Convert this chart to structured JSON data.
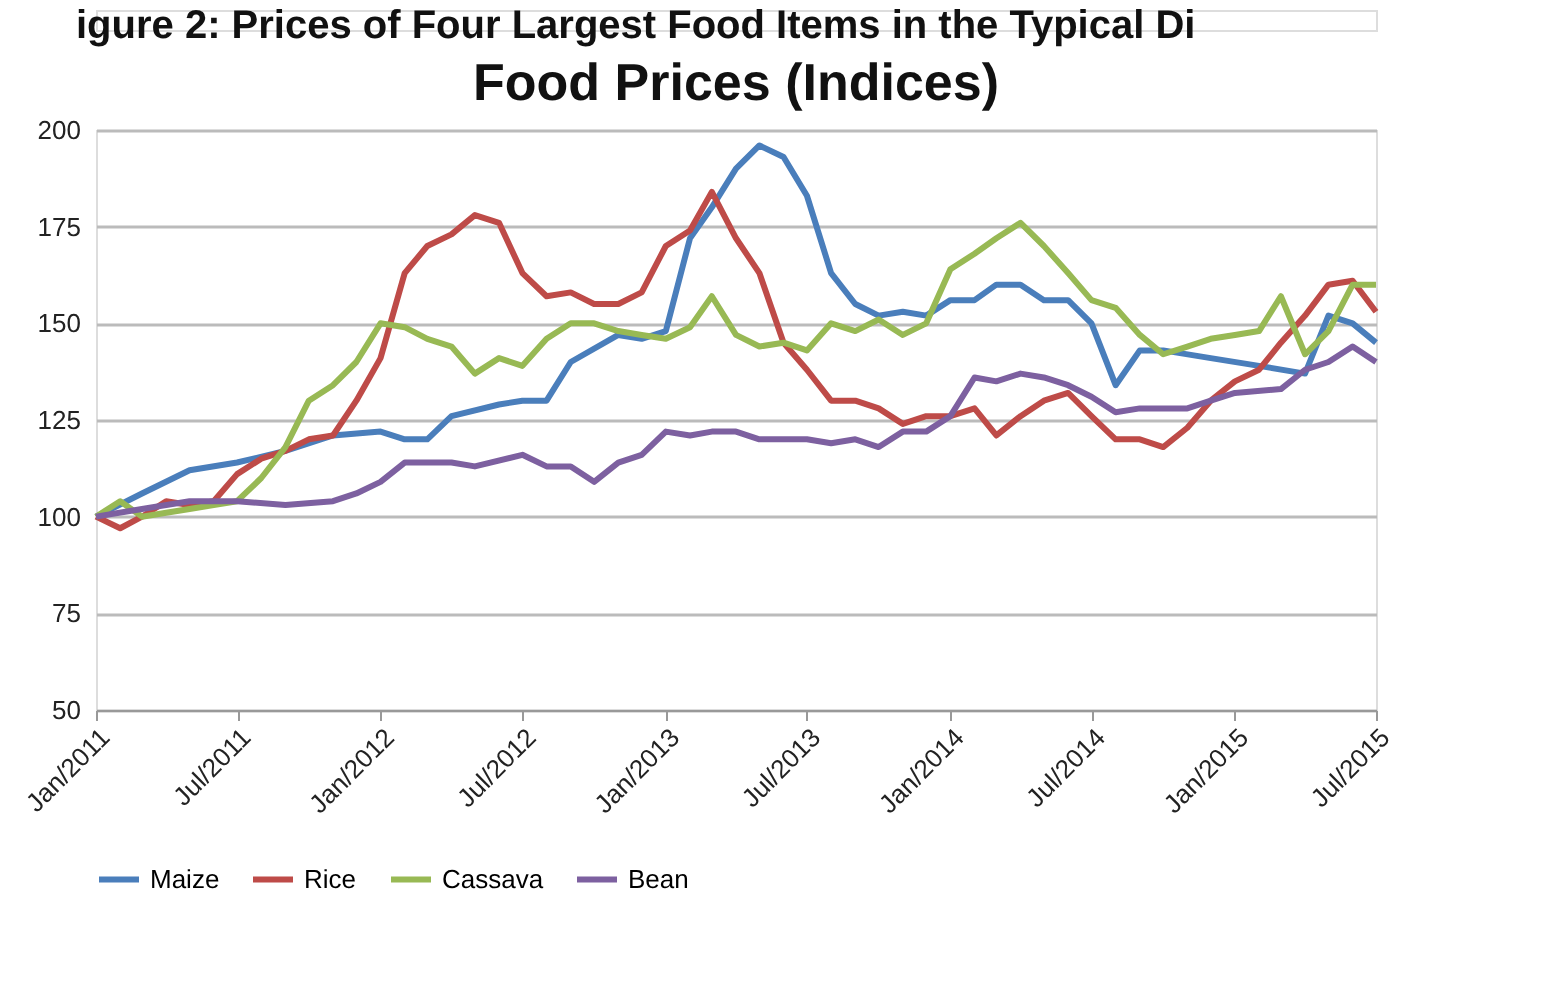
{
  "chart_data": {
    "type": "line",
    "title": "Food Prices (Indices)",
    "annotations": [
      "igure 2: Prices of Four Largest Food Items in the Typical Di"
    ],
    "series": [
      {
        "name": "Maize",
        "color": "#4a7ebb",
        "x": [
          "2011-01",
          "2011-03",
          "2011-05",
          "2011-07",
          "2011-09",
          "2011-11",
          "2012-01",
          "2012-02",
          "2012-03",
          "2012-04",
          "2012-06",
          "2012-07",
          "2012-08",
          "2012-09",
          "2012-11",
          "2012-12",
          "2013-01",
          "2013-02",
          "2013-03",
          "2013-04",
          "2013-05",
          "2013-06",
          "2013-07",
          "2013-08",
          "2013-09",
          "2013-10",
          "2013-11",
          "2013-12",
          "2014-01",
          "2014-02",
          "2014-03",
          "2014-04",
          "2014-05",
          "2014-06",
          "2014-07",
          "2014-08",
          "2014-09",
          "2014-10",
          "2014-12",
          "2015-02",
          "2015-04",
          "2015-05",
          "2015-06",
          "2015-07"
        ],
        "values": [
          100,
          106,
          112,
          114,
          117,
          121,
          122,
          120,
          120,
          126,
          129,
          130,
          130,
          140,
          147,
          146,
          148,
          172,
          180,
          190,
          196,
          193,
          183,
          163,
          155,
          152,
          153,
          152,
          156,
          156,
          160,
          160,
          156,
          156,
          150,
          134,
          143,
          143,
          141,
          139,
          137,
          152,
          150,
          145
        ]
      },
      {
        "name": "Rice",
        "color": "#be4b48",
        "x": [
          "2011-01",
          "2011-02",
          "2011-03",
          "2011-04",
          "2011-05",
          "2011-06",
          "2011-07",
          "2011-08",
          "2011-09",
          "2011-10",
          "2011-11",
          "2011-12",
          "2012-01",
          "2012-02",
          "2012-03",
          "2012-04",
          "2012-05",
          "2012-06",
          "2012-07",
          "2012-08",
          "2012-09",
          "2012-10",
          "2012-11",
          "2012-12",
          "2013-01",
          "2013-02",
          "2013-03",
          "2013-04",
          "2013-05",
          "2013-06",
          "2013-07",
          "2013-08",
          "2013-09",
          "2013-10",
          "2013-11",
          "2013-12",
          "2014-01",
          "2014-02",
          "2014-03",
          "2014-04",
          "2014-05",
          "2014-06",
          "2014-07",
          "2014-08",
          "2014-09",
          "2014-10",
          "2014-11",
          "2014-12",
          "2015-01",
          "2015-02",
          "2015-03",
          "2015-04",
          "2015-05",
          "2015-06",
          "2015-07"
        ],
        "values": [
          100,
          97,
          100,
          104,
          103,
          104,
          111,
          115,
          117,
          120,
          121,
          130,
          141,
          163,
          170,
          173,
          178,
          176,
          163,
          157,
          158,
          155,
          155,
          158,
          170,
          174,
          184,
          172,
          163,
          145,
          138,
          130,
          130,
          128,
          124,
          126,
          126,
          128,
          121,
          126,
          130,
          132,
          126,
          120,
          120,
          118,
          123,
          130,
          135,
          138,
          145,
          152,
          160,
          161,
          153
        ]
      },
      {
        "name": "Cassava",
        "color": "#98b954",
        "x": [
          "2011-01",
          "2011-02",
          "2011-03",
          "2011-04",
          "2011-05",
          "2011-06",
          "2011-07",
          "2011-08",
          "2011-09",
          "2011-10",
          "2011-11",
          "2011-12",
          "2012-01",
          "2012-02",
          "2012-03",
          "2012-04",
          "2012-05",
          "2012-06",
          "2012-07",
          "2012-08",
          "2012-09",
          "2012-10",
          "2012-11",
          "2012-12",
          "2013-01",
          "2013-02",
          "2013-03",
          "2013-04",
          "2013-05",
          "2013-06",
          "2013-07",
          "2013-08",
          "2013-09",
          "2013-10",
          "2013-11",
          "2013-12",
          "2014-01",
          "2014-02",
          "2014-03",
          "2014-04",
          "2014-05",
          "2014-06",
          "2014-07",
          "2014-08",
          "2014-09",
          "2014-10",
          "2014-11",
          "2014-12",
          "2015-01",
          "2015-02",
          "2015-03",
          "2015-04",
          "2015-05",
          "2015-06",
          "2015-07"
        ],
        "values": [
          100,
          104,
          100,
          101,
          102,
          103,
          104,
          110,
          118,
          130,
          134,
          140,
          150,
          149,
          146,
          144,
          137,
          141,
          139,
          146,
          150,
          150,
          148,
          147,
          146,
          149,
          157,
          147,
          144,
          145,
          143,
          150,
          148,
          151,
          147,
          150,
          164,
          168,
          172,
          176,
          170,
          163,
          156,
          154,
          147,
          142,
          144,
          146,
          147,
          148,
          157,
          142,
          148,
          160,
          160
        ]
      },
      {
        "name": "Bean",
        "color": "#7d60a0",
        "x": [
          "2011-01",
          "2011-03",
          "2011-05",
          "2011-07",
          "2011-09",
          "2011-11",
          "2011-12",
          "2012-01",
          "2012-02",
          "2012-04",
          "2012-05",
          "2012-07",
          "2012-08",
          "2012-09",
          "2012-10",
          "2012-11",
          "2012-12",
          "2013-01",
          "2013-02",
          "2013-03",
          "2013-04",
          "2013-05",
          "2013-07",
          "2013-08",
          "2013-09",
          "2013-10",
          "2013-11",
          "2013-12",
          "2014-01",
          "2014-02",
          "2014-03",
          "2014-04",
          "2014-05",
          "2014-06",
          "2014-07",
          "2014-08",
          "2014-09",
          "2014-11",
          "2014-12",
          "2015-01",
          "2015-03",
          "2015-04",
          "2015-05",
          "2015-06",
          "2015-07"
        ],
        "values": [
          100,
          102,
          104,
          104,
          103,
          104,
          106,
          109,
          114,
          114,
          113,
          116,
          113,
          113,
          109,
          114,
          116,
          122,
          121,
          122,
          122,
          120,
          120,
          119,
          120,
          118,
          122,
          122,
          126,
          136,
          135,
          137,
          136,
          134,
          131,
          127,
          128,
          128,
          130,
          132,
          133,
          138,
          140,
          144,
          140
        ]
      }
    ],
    "xlim": [
      "2011-01",
      "2015-07"
    ],
    "xticks": [
      {
        "value": "2011-01",
        "label": "Jan/2011"
      },
      {
        "value": "2011-07",
        "label": "Jul/2011"
      },
      {
        "value": "2012-01",
        "label": "Jan/2012"
      },
      {
        "value": "2012-07",
        "label": "Jul/2012"
      },
      {
        "value": "2013-01",
        "label": "Jan/2013"
      },
      {
        "value": "2013-07",
        "label": "Jul/2013"
      },
      {
        "value": "2014-01",
        "label": "Jan/2014"
      },
      {
        "value": "2014-07",
        "label": "Jul/2014"
      },
      {
        "value": "2015-01",
        "label": "Jan/2015"
      },
      {
        "value": "2015-07",
        "label": "Jul/2015"
      }
    ],
    "ylim": [
      50,
      200
    ],
    "yticks": [
      50,
      75,
      100,
      125,
      150,
      175,
      200
    ],
    "grid": "y",
    "legend": "bottom",
    "marker": "none",
    "line_style": "solid"
  }
}
